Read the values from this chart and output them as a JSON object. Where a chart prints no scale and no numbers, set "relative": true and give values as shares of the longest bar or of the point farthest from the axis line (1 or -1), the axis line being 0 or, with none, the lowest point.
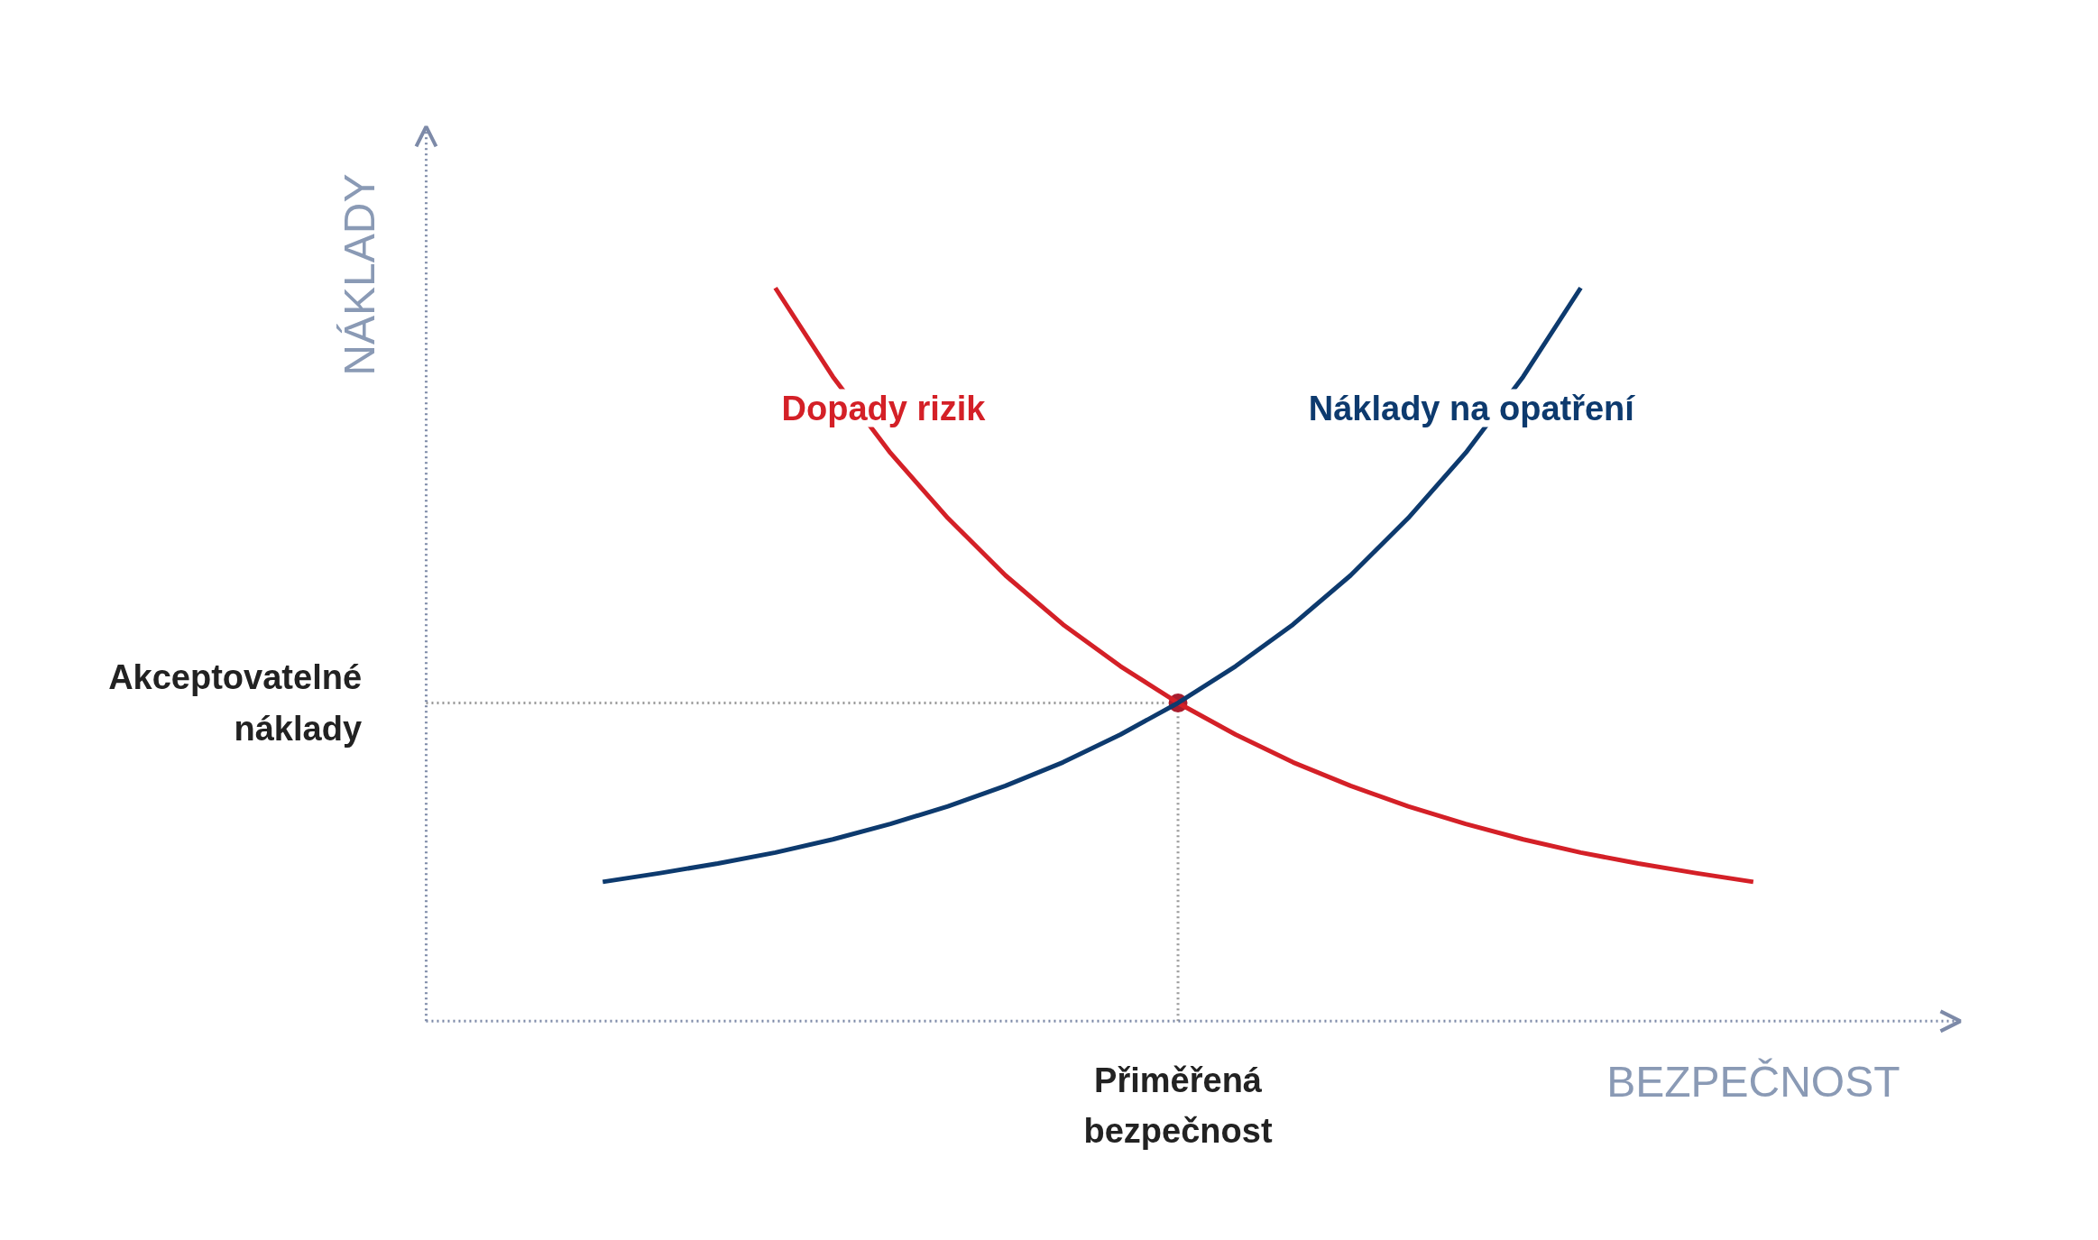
{
  "chart_data": {
    "type": "line",
    "relative": true,
    "xlabel": "BEZPEČNOST",
    "ylabel": "NÁKLADY",
    "categories": [
      null,
      null,
      null,
      null,
      null,
      null,
      null,
      null,
      null,
      null,
      null,
      null,
      null,
      null,
      null,
      null,
      null,
      null,
      null,
      null,
      null
    ],
    "series": [
      {
        "name": "Dopady rizik",
        "color": "#d42027",
        "values": [
          null,
          null,
          null,
          1.0,
          0.879,
          0.775,
          0.686,
          0.608,
          0.541,
          0.484,
          0.434,
          0.391,
          0.353,
          0.321,
          0.293,
          0.269,
          0.248,
          0.23,
          0.215,
          0.202,
          0.19
        ]
      },
      {
        "name": "Náklady na opatření",
        "color": "#0d3a6e",
        "values": [
          0.19,
          0.202,
          0.215,
          0.23,
          0.248,
          0.269,
          0.293,
          0.321,
          0.353,
          0.391,
          0.434,
          0.484,
          0.541,
          0.608,
          0.686,
          0.775,
          0.879,
          1.0,
          null,
          null,
          null
        ]
      }
    ],
    "annotations": [
      "Přiměřená bezpečnost"
    ],
    "ref_lines": [
      {
        "axis": "y",
        "value": 0.434,
        "label": "Akceptovatelné náklady",
        "color": "#9a9a9a",
        "line_style": "dotted"
      }
    ]
  }
}
